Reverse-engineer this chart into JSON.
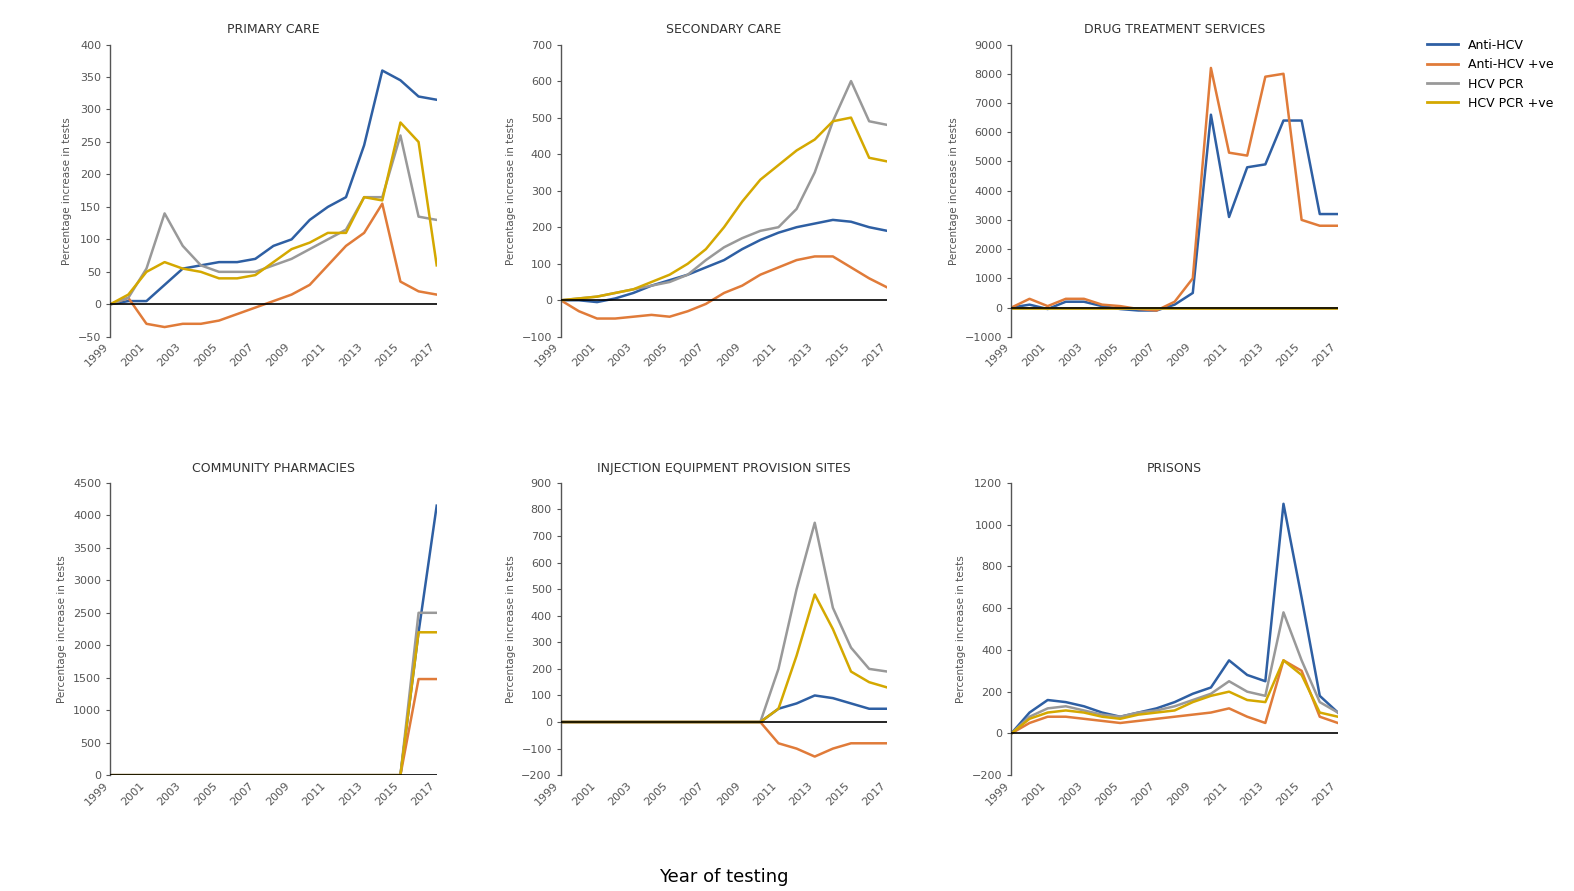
{
  "years": [
    1999,
    2000,
    2001,
    2002,
    2003,
    2004,
    2005,
    2006,
    2007,
    2008,
    2009,
    2010,
    2011,
    2012,
    2013,
    2014,
    2015,
    2016,
    2017
  ],
  "colors": {
    "Anti-HCV": "#2e5fa3",
    "Anti-HCV +ve": "#e07b39",
    "HCV PCR": "#999999",
    "HCV PCR +ve": "#d4a800"
  },
  "legend_labels": [
    "Anti-HCV",
    "Anti-HCV +ve",
    "HCV PCR",
    "HCV PCR +ve"
  ],
  "primary_care": {
    "title": "PRIMARY CARE",
    "ylim": [
      -50,
      400
    ],
    "yticks": [
      -50,
      0,
      50,
      100,
      150,
      200,
      250,
      300,
      350,
      400
    ],
    "Anti-HCV": [
      0,
      5,
      5,
      30,
      55,
      60,
      65,
      65,
      70,
      90,
      100,
      130,
      150,
      165,
      245,
      360,
      345,
      320,
      315
    ],
    "Anti-HCV +ve": [
      0,
      10,
      -30,
      -35,
      -30,
      -30,
      -25,
      -15,
      -5,
      5,
      15,
      30,
      60,
      90,
      110,
      155,
      35,
      20,
      15
    ],
    "HCV PCR": [
      0,
      10,
      55,
      140,
      90,
      60,
      50,
      50,
      50,
      60,
      70,
      85,
      100,
      115,
      165,
      165,
      260,
      135,
      130
    ],
    "HCV PCR +ve": [
      0,
      15,
      50,
      65,
      55,
      50,
      40,
      40,
      45,
      65,
      85,
      95,
      110,
      110,
      165,
      160,
      280,
      250,
      60
    ]
  },
  "secondary_care": {
    "title": "SECONDARY CARE",
    "ylim": [
      -100,
      700
    ],
    "yticks": [
      -100,
      0,
      100,
      200,
      300,
      400,
      500,
      600,
      700
    ],
    "Anti-HCV": [
      0,
      0,
      -5,
      5,
      20,
      40,
      55,
      70,
      90,
      110,
      140,
      165,
      185,
      200,
      210,
      220,
      215,
      200,
      190
    ],
    "Anti-HCV +ve": [
      0,
      -30,
      -50,
      -50,
      -45,
      -40,
      -45,
      -30,
      -10,
      20,
      40,
      70,
      90,
      110,
      120,
      120,
      90,
      60,
      35
    ],
    "HCV PCR": [
      0,
      5,
      10,
      20,
      30,
      40,
      50,
      70,
      110,
      145,
      170,
      190,
      200,
      250,
      350,
      490,
      600,
      490,
      480
    ],
    "HCV PCR +ve": [
      0,
      5,
      10,
      20,
      30,
      50,
      70,
      100,
      140,
      200,
      270,
      330,
      370,
      410,
      440,
      490,
      500,
      390,
      380
    ]
  },
  "drug_treatment": {
    "title": "DRUG TREATMENT SERVICES",
    "ylim": [
      -1000,
      9000
    ],
    "yticks": [
      -1000,
      0,
      1000,
      2000,
      3000,
      4000,
      5000,
      6000,
      7000,
      8000,
      9000
    ],
    "Anti-HCV": [
      0,
      100,
      -50,
      200,
      200,
      50,
      -50,
      -100,
      -100,
      100,
      500,
      6600,
      3100,
      4800,
      4900,
      6400,
      6400,
      3200,
      3200
    ],
    "Anti-HCV +ve": [
      0,
      300,
      50,
      300,
      300,
      100,
      50,
      -50,
      -100,
      200,
      1000,
      8200,
      5300,
      5200,
      7900,
      8000,
      3000,
      2800,
      2800
    ],
    "HCV PCR": [
      0,
      0,
      0,
      0,
      0,
      0,
      0,
      0,
      0,
      0,
      0,
      0,
      0,
      0,
      0,
      0,
      0,
      0,
      0
    ],
    "HCV PCR +ve": [
      0,
      0,
      0,
      0,
      0,
      0,
      0,
      0,
      0,
      0,
      0,
      0,
      0,
      0,
      0,
      0,
      0,
      0,
      0
    ]
  },
  "community_pharmacies": {
    "title": "COMMUNITY PHARMACIES",
    "ylim": [
      0,
      4500
    ],
    "yticks": [
      0,
      500,
      1000,
      1500,
      2000,
      2500,
      3000,
      3500,
      4000,
      4500
    ],
    "Anti-HCV": [
      0,
      0,
      0,
      0,
      0,
      0,
      0,
      0,
      0,
      0,
      0,
      0,
      0,
      0,
      0,
      0,
      0,
      2200,
      4150
    ],
    "Anti-HCV +ve": [
      0,
      0,
      0,
      0,
      0,
      0,
      0,
      0,
      0,
      0,
      0,
      0,
      0,
      0,
      0,
      0,
      0,
      1480,
      1480
    ],
    "HCV PCR": [
      0,
      0,
      0,
      0,
      0,
      0,
      0,
      0,
      0,
      0,
      0,
      0,
      0,
      0,
      0,
      0,
      0,
      2500,
      2500
    ],
    "HCV PCR +ve": [
      0,
      0,
      0,
      0,
      0,
      0,
      0,
      0,
      0,
      0,
      0,
      0,
      0,
      0,
      0,
      0,
      0,
      2200,
      2200
    ]
  },
  "injection_equipment": {
    "title": "INJECTION EQUIPMENT PROVISION SITES",
    "ylim": [
      -200,
      900
    ],
    "yticks": [
      -200,
      -100,
      0,
      100,
      200,
      300,
      400,
      500,
      600,
      700,
      800,
      900
    ],
    "Anti-HCV": [
      0,
      0,
      0,
      0,
      0,
      0,
      0,
      0,
      0,
      0,
      0,
      0,
      50,
      70,
      100,
      90,
      70,
      50,
      50
    ],
    "Anti-HCV +ve": [
      0,
      0,
      0,
      0,
      0,
      0,
      0,
      0,
      0,
      0,
      0,
      0,
      -80,
      -100,
      -130,
      -100,
      -80,
      -80,
      -80
    ],
    "HCV PCR": [
      0,
      0,
      0,
      0,
      0,
      0,
      0,
      0,
      0,
      0,
      0,
      0,
      200,
      500,
      750,
      430,
      280,
      200,
      190
    ],
    "HCV PCR +ve": [
      0,
      0,
      0,
      0,
      0,
      0,
      0,
      0,
      0,
      0,
      0,
      0,
      50,
      250,
      480,
      350,
      190,
      150,
      130
    ]
  },
  "prisons": {
    "title": "PRISONS",
    "ylim": [
      -200,
      1200
    ],
    "yticks": [
      -200,
      0,
      200,
      400,
      600,
      800,
      1000,
      1200
    ],
    "Anti-HCV": [
      0,
      100,
      160,
      150,
      130,
      100,
      80,
      100,
      120,
      150,
      190,
      220,
      350,
      280,
      250,
      1100,
      650,
      180,
      100
    ],
    "Anti-HCV +ve": [
      0,
      50,
      80,
      80,
      70,
      60,
      50,
      60,
      70,
      80,
      90,
      100,
      120,
      80,
      50,
      350,
      300,
      80,
      50
    ],
    "HCV PCR": [
      0,
      80,
      120,
      130,
      110,
      90,
      80,
      100,
      110,
      130,
      160,
      190,
      250,
      200,
      180,
      580,
      350,
      150,
      100
    ],
    "HCV PCR +ve": [
      0,
      70,
      100,
      110,
      100,
      80,
      70,
      90,
      100,
      110,
      150,
      180,
      200,
      160,
      150,
      350,
      280,
      100,
      80
    ]
  },
  "xlabel": "Year of testing",
  "ylabel": "Percentage increase in tests"
}
